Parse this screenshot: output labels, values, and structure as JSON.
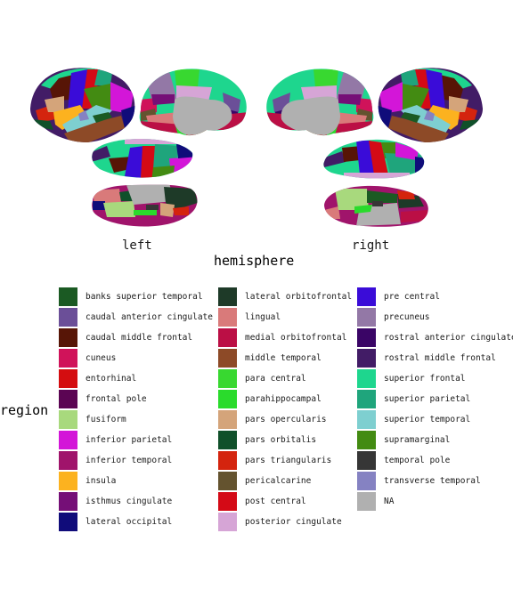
{
  "chart_data": {
    "type": "brain-atlas",
    "x_axis_title": "hemisphere",
    "hemispheres": [
      "left",
      "right"
    ],
    "legend_title": "region",
    "legend": [
      {
        "label": "banks superior temporal",
        "color": "#1b5a23"
      },
      {
        "label": "caudal anterior cingulate",
        "color": "#6b4f98"
      },
      {
        "label": "caudal middle frontal",
        "color": "#571506"
      },
      {
        "label": "cuneus",
        "color": "#d0135a"
      },
      {
        "label": "entorhinal",
        "color": "#d40d10"
      },
      {
        "label": "frontal pole",
        "color": "#5b0553"
      },
      {
        "label": "fusiform",
        "color": "#a8d97d"
      },
      {
        "label": "inferior parietal",
        "color": "#d316d8"
      },
      {
        "label": "inferior temporal",
        "color": "#a0146b"
      },
      {
        "label": "insula",
        "color": "#fcb21f"
      },
      {
        "label": "isthmus cingulate",
        "color": "#750f77"
      },
      {
        "label": "lateral occipital",
        "color": "#100c7a"
      },
      {
        "label": "lateral orbitofrontal",
        "color": "#1e3a28"
      },
      {
        "label": "lingual",
        "color": "#d97a7a"
      },
      {
        "label": "medial orbitofrontal",
        "color": "#bb0f45"
      },
      {
        "label": "middle temporal",
        "color": "#8d4a27"
      },
      {
        "label": "para central",
        "color": "#38d830"
      },
      {
        "label": "parahippocampal",
        "color": "#2adb2c"
      },
      {
        "label": "pars opercularis",
        "color": "#d4a47a"
      },
      {
        "label": "pars orbitalis",
        "color": "#10502a"
      },
      {
        "label": "pars triangularis",
        "color": "#d4240e"
      },
      {
        "label": "pericalcarine",
        "color": "#64532f"
      },
      {
        "label": "post central",
        "color": "#d40a16"
      },
      {
        "label": "posterior cingulate",
        "color": "#d6a5d6"
      },
      {
        "label": "pre central",
        "color": "#3a0cd8"
      },
      {
        "label": "precuneus",
        "color": "#9378a6"
      },
      {
        "label": "rostral anterior cingulate",
        "color": "#3a0566"
      },
      {
        "label": "rostral middle frontal",
        "color": "#421c66"
      },
      {
        "label": "superior frontal",
        "color": "#1ed68e"
      },
      {
        "label": "superior parietal",
        "color": "#1fa57c"
      },
      {
        "label": "superior temporal",
        "color": "#7ecfd0"
      },
      {
        "label": "supramarginal",
        "color": "#438b12"
      },
      {
        "label": "temporal pole",
        "color": "#363636"
      },
      {
        "label": "transverse temporal",
        "color": "#8582c2"
      },
      {
        "label": "NA",
        "color": "#b0b0b0"
      }
    ]
  }
}
